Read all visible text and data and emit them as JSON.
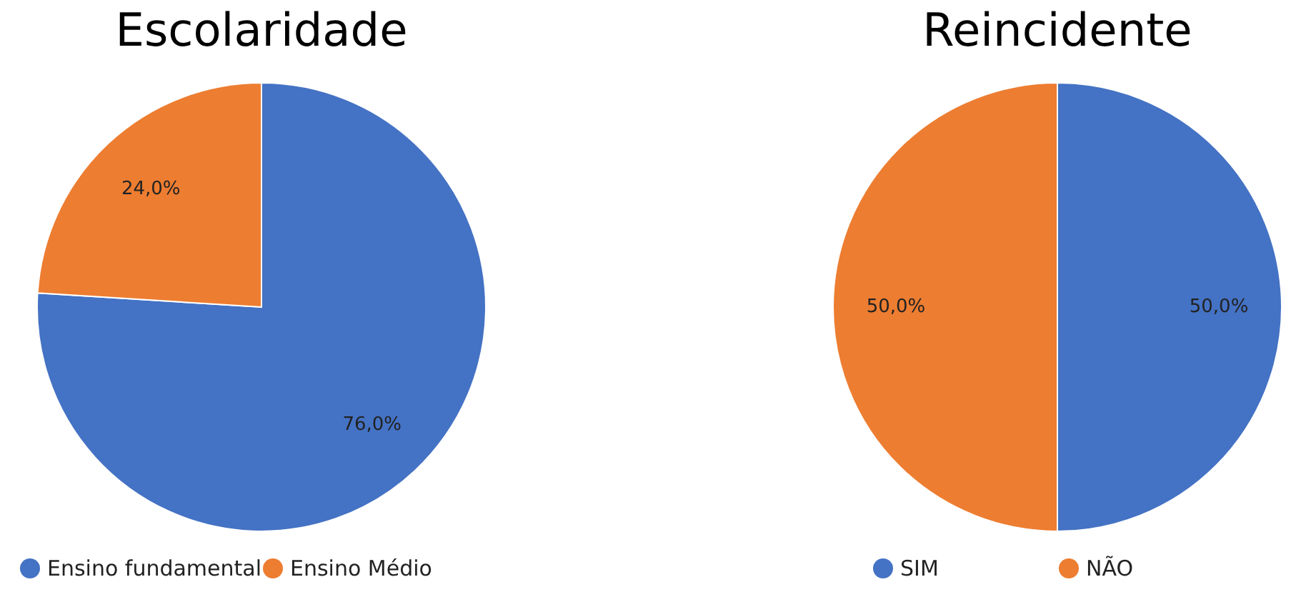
{
  "chart_data": [
    {
      "type": "pie",
      "title": "Escolaridade",
      "categories": [
        "Ensino fundamental",
        "Ensino Médio"
      ],
      "values": [
        76.0,
        24.0
      ],
      "value_labels": [
        "76,0%",
        "24,0%"
      ],
      "colors": [
        "#4472c4",
        "#ed7d31"
      ],
      "legend": "bottom"
    },
    {
      "type": "pie",
      "title": "Reincidente",
      "categories": [
        "SIM",
        "NÃO"
      ],
      "values": [
        50.0,
        50.0
      ],
      "value_labels": [
        "50,0%",
        "50,0%"
      ],
      "colors": [
        "#4472c4",
        "#ed7d31"
      ],
      "legend": "bottom"
    }
  ]
}
